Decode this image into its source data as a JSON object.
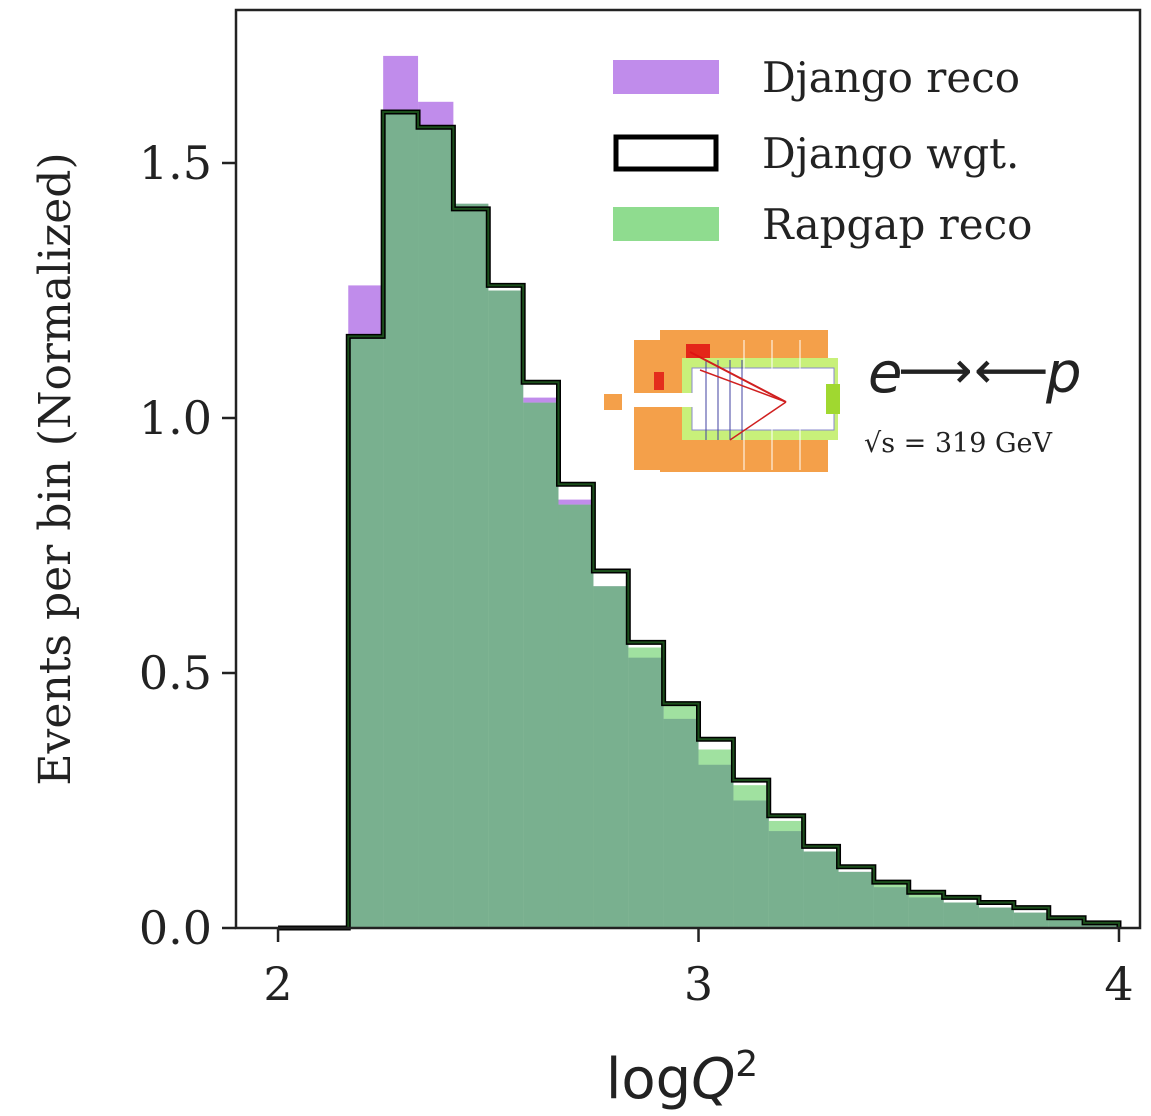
{
  "chart_data": {
    "type": "histogram",
    "xlabel": "logQ²",
    "ylabel": "Events per bin (Normalized)",
    "xlim": [
      1.9,
      4.05
    ],
    "ylim": [
      0,
      1.8
    ],
    "xticks": [
      2,
      3,
      4
    ],
    "yticks": [
      0.0,
      0.5,
      1.0,
      1.5
    ],
    "xtick_labels": [
      "2",
      "3",
      "4"
    ],
    "ytick_labels": [
      "0.0",
      "0.5",
      "1.0",
      "1.5"
    ],
    "bin_edges": [
      2.0,
      2.083,
      2.167,
      2.25,
      2.333,
      2.417,
      2.5,
      2.583,
      2.667,
      2.75,
      2.833,
      2.917,
      3.0,
      3.083,
      3.167,
      3.25,
      3.333,
      3.417,
      3.5,
      3.583,
      3.667,
      3.75,
      3.833,
      3.917,
      4.0
    ],
    "series": [
      {
        "name": "Django reco",
        "style": "filled",
        "color": "#c08ceb",
        "values": [
          0.0,
          0.0,
          1.26,
          1.71,
          1.62,
          1.42,
          1.25,
          1.04,
          0.84,
          0.67,
          0.53,
          0.41,
          0.32,
          0.25,
          0.19,
          0.15,
          0.11,
          0.08,
          0.06,
          0.05,
          0.04,
          0.03,
          0.02,
          0.01
        ]
      },
      {
        "name": "Django wgt.",
        "style": "step",
        "color": "#000000",
        "values": [
          0.0,
          0.0,
          1.16,
          1.6,
          1.57,
          1.41,
          1.26,
          1.07,
          0.87,
          0.7,
          0.56,
          0.44,
          0.37,
          0.29,
          0.22,
          0.16,
          0.12,
          0.09,
          0.07,
          0.06,
          0.05,
          0.04,
          0.02,
          0.01
        ]
      },
      {
        "name": "Rapgap reco",
        "style": "filled",
        "color": "#8fdc8f",
        "values": [
          0.0,
          0.0,
          1.16,
          1.6,
          1.57,
          1.42,
          1.25,
          1.03,
          0.83,
          0.67,
          0.55,
          0.44,
          0.35,
          0.28,
          0.21,
          0.15,
          0.11,
          0.09,
          0.07,
          0.05,
          0.04,
          0.03,
          0.02,
          0.01
        ]
      }
    ],
    "legend_position": "top-right"
  },
  "overlay": {
    "beam_label_e": "e",
    "beam_label_p": "p",
    "energy_label": "√s = 319 GeV"
  }
}
